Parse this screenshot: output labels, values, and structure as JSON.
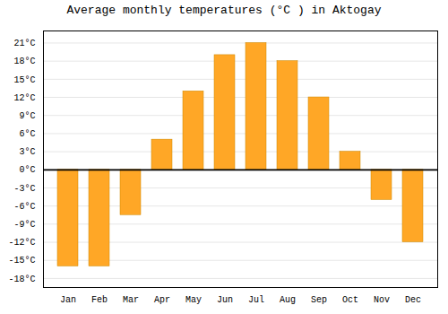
{
  "chart_data": {
    "type": "bar",
    "title": "Average monthly temperatures (°C ) in Aktogay",
    "categories": [
      "Jan",
      "Feb",
      "Mar",
      "Apr",
      "May",
      "Jun",
      "Jul",
      "Aug",
      "Sep",
      "Oct",
      "Nov",
      "Dec"
    ],
    "values": [
      -16,
      -16,
      -7.5,
      5,
      13,
      19,
      21,
      18,
      12,
      3,
      -5,
      -12
    ],
    "color": "#FFA726",
    "ylim": [
      -19.5,
      23
    ],
    "yticks": [
      {
        "value": -18,
        "label": "-18°C"
      },
      {
        "value": -15,
        "label": "-15°C"
      },
      {
        "value": -12,
        "label": "-12°C"
      },
      {
        "value": -9,
        "label": "-9°C"
      },
      {
        "value": -6,
        "label": "-6°C"
      },
      {
        "value": -3,
        "label": "-3°C"
      },
      {
        "value": 0,
        "label": "0°C"
      },
      {
        "value": 3,
        "label": "3°C"
      },
      {
        "value": 6,
        "label": "6°C"
      },
      {
        "value": 9,
        "label": "9°C"
      },
      {
        "value": 12,
        "label": "12°C"
      },
      {
        "value": 15,
        "label": "15°C"
      },
      {
        "value": 18,
        "label": "18°C"
      },
      {
        "value": 21,
        "label": "21°C"
      }
    ],
    "grid": true
  }
}
